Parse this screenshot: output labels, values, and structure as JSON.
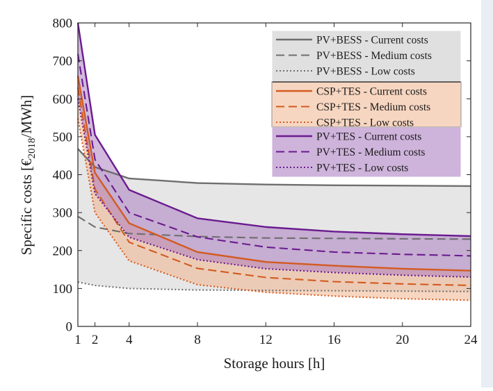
{
  "chart_data": {
    "type": "area",
    "title": "",
    "xlabel": "Storage hours [h]",
    "ylabel": {
      "main": "Specific costs [€",
      "sub": "2018",
      "tail": "/MWh]"
    },
    "xlim": [
      1,
      24
    ],
    "ylim": [
      0,
      800
    ],
    "xticks": [
      1,
      2,
      4,
      8,
      12,
      16,
      20,
      24
    ],
    "yticks": [
      0,
      100,
      200,
      300,
      400,
      500,
      600,
      700,
      800
    ],
    "grid": false,
    "legend_position": "top-right",
    "x": [
      1,
      2,
      4,
      8,
      12,
      16,
      20,
      24
    ],
    "groups": [
      {
        "name": "PV+BESS",
        "color": "#6e6e6e",
        "fill": "#d5d5d5",
        "fill_opacity": 0.6
      },
      {
        "name": "CSP+TES",
        "color": "#d35a1f",
        "fill": "#f0b48e",
        "fill_opacity": 0.55
      },
      {
        "name": "PV+TES",
        "color": "#6a1b8f",
        "fill": "#a674bd",
        "fill_opacity": 0.5
      }
    ],
    "series": [
      {
        "name": "PV+BESS - Current costs",
        "group": 0,
        "dash": "solid",
        "values": [
          468,
          420,
          390,
          378,
          374,
          372,
          371,
          370
        ]
      },
      {
        "name": "PV+BESS - Medium costs",
        "group": 0,
        "dash": "dashed",
        "values": [
          290,
          262,
          245,
          237,
          233,
          232,
          231,
          230
        ]
      },
      {
        "name": "PV+BESS - Low costs",
        "group": 0,
        "dash": "dotted",
        "values": [
          117,
          108,
          100,
          96,
          95,
          94,
          93,
          92
        ]
      },
      {
        "name": "CSP+TES - Current costs",
        "group": 1,
        "dash": "solid",
        "values": [
          660,
          405,
          272,
          196,
          170,
          160,
          152,
          147
        ]
      },
      {
        "name": "CSP+TES - Medium costs",
        "group": 1,
        "dash": "dashed",
        "values": [
          630,
          362,
          222,
          153,
          129,
          118,
          112,
          108
        ]
      },
      {
        "name": "CSP+TES - Low costs",
        "group": 1,
        "dash": "dotted",
        "values": [
          548,
          300,
          173,
          110,
          90,
          80,
          73,
          69
        ]
      },
      {
        "name": "PV+TES - Current costs",
        "group": 2,
        "dash": "solid",
        "values": [
          800,
          505,
          360,
          285,
          262,
          250,
          243,
          238
        ]
      },
      {
        "name": "PV+TES - Medium costs",
        "group": 2,
        "dash": "dashed",
        "values": [
          718,
          440,
          300,
          236,
          209,
          196,
          190,
          186
        ]
      },
      {
        "name": "PV+TES - Low costs",
        "group": 2,
        "dash": "dotted",
        "values": [
          600,
          350,
          235,
          176,
          152,
          142,
          135,
          130
        ]
      }
    ]
  }
}
